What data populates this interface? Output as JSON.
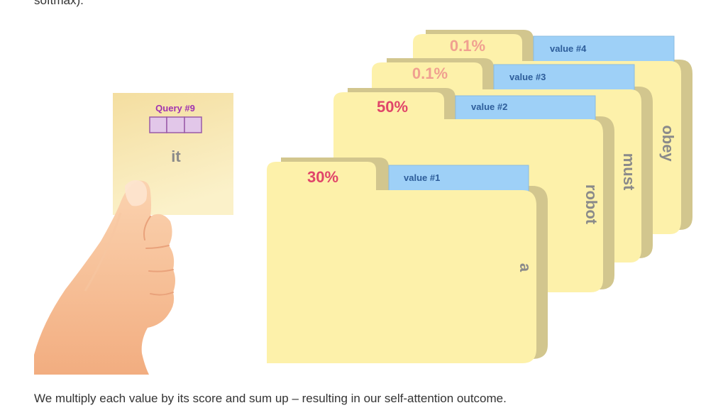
{
  "top_text": "softmax).",
  "caption": "We multiply each value by its score and sum up – resulting in our self-attention outcome.",
  "query": {
    "title": "Query #9",
    "word": "it"
  },
  "folders": [
    {
      "score": "0.1%",
      "value_label": "value #4",
      "word": "obey",
      "score_color": "#f0a090"
    },
    {
      "score": "0.1%",
      "value_label": "value #3",
      "word": "must",
      "score_color": "#f0a090"
    },
    {
      "score": "50%",
      "value_label": "value #2",
      "word": "robot",
      "score_color": "#e0456a"
    },
    {
      "score": "30%",
      "value_label": "value #1",
      "word": "a",
      "score_color": "#e0456a"
    }
  ],
  "colors": {
    "folder_fill": "#fdf1aa",
    "folder_shadow": "#d2c68e",
    "tab_blue": "#9ed0f7",
    "note_fill": "#f6e3a0",
    "query_box": "#e2c7e9",
    "query_box_stroke": "#9a5aa8"
  },
  "icons": {
    "hand": "hand-holding-card-icon"
  }
}
